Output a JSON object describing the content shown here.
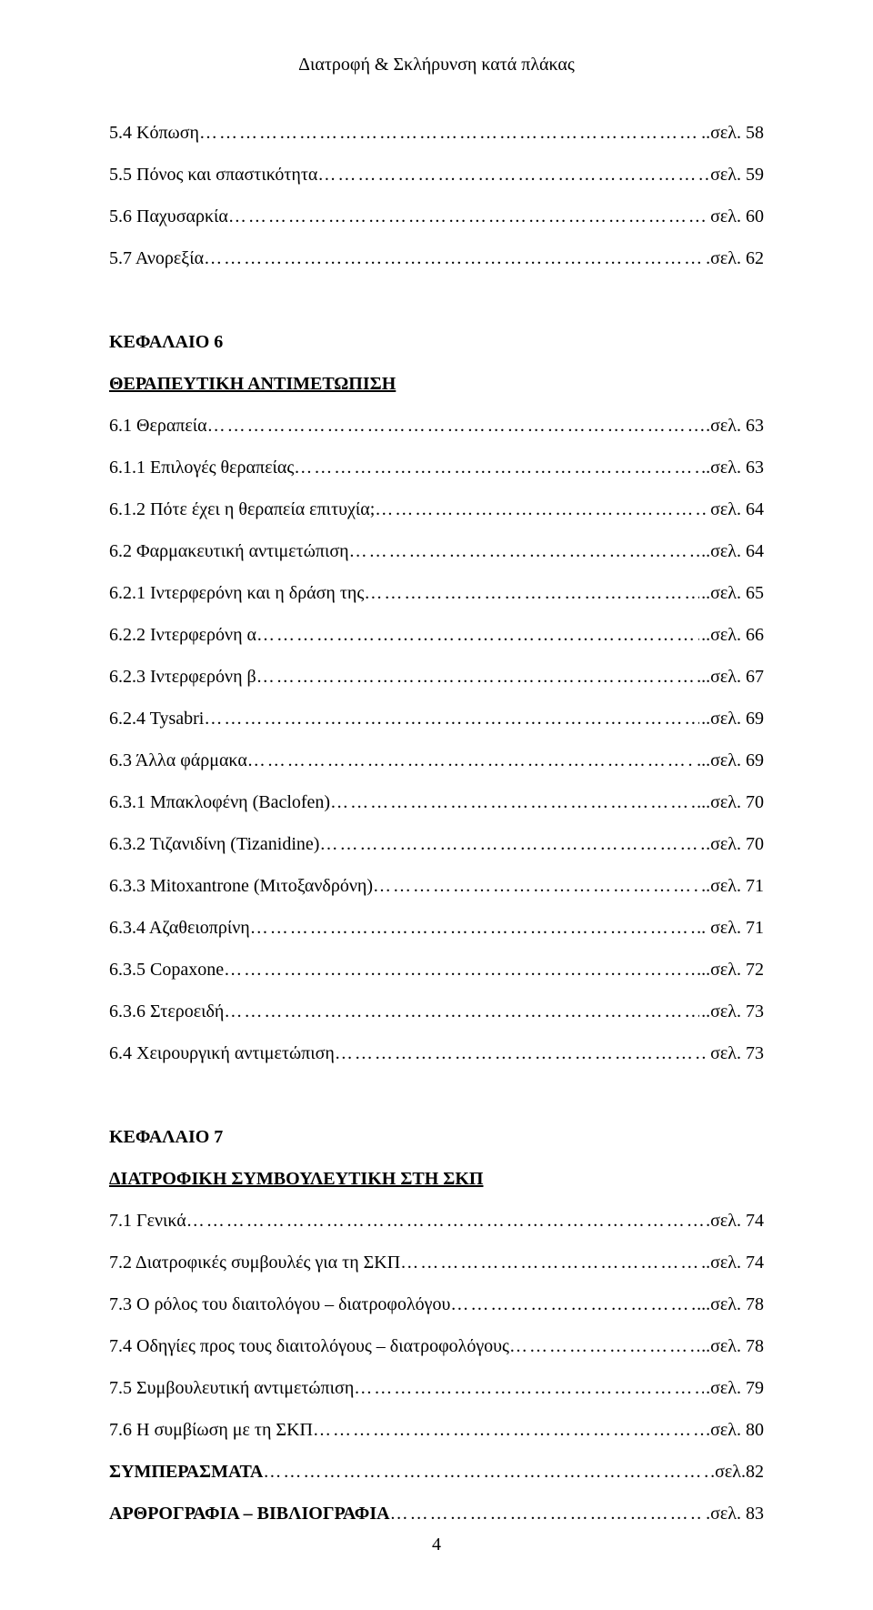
{
  "header": "Διατροφή & Σκλήρυνση κατά πλάκας",
  "page_number": "4",
  "blocks": [
    {
      "entries": [
        {
          "title": "5.4 Κόπωση",
          "page": "..σελ. 58"
        },
        {
          "title": "5.5 Πόνος και σπαστικότητα",
          "page": "σελ. 59"
        },
        {
          "title": "5.6 Παχυσαρκία",
          "page": "σελ. 60"
        },
        {
          "title": "5.7 Ανορεξία",
          "page": ".σελ. 62"
        }
      ]
    },
    {
      "heading_plain": "ΚΕΦΑΛΑΙΟ 6",
      "heading_uline": "ΘΕΡΑΠΕΥΤΙΚΗ ΑΝΤΙΜΕΤΩΠΙΣΗ",
      "entries": [
        {
          "title": "6.1 Θεραπεία",
          "page": ".σελ. 63"
        },
        {
          "title": "6.1.1 Επιλογές θεραπείας",
          "page": "..σελ. 63"
        },
        {
          "title": "6.1.2 Πότε έχει η θεραπεία επιτυχία;",
          "page": "σελ. 64"
        },
        {
          "title": "6.2 Φαρμακευτική αντιμετώπιση",
          "page": "..σελ. 64"
        },
        {
          "title": "6.2.1 Ιντερφερόνη και η δράση της",
          "page": "..σελ. 65"
        },
        {
          "title": "6.2.2 Ιντερφερόνη α",
          "page": "..σελ. 66"
        },
        {
          "title": "6.2.3 Ιντερφερόνη β",
          "page": "...σελ. 67"
        },
        {
          "title": "6.2.4 Tysabri",
          "page": "..σελ. 69"
        },
        {
          "title": "6.3 Άλλα φάρμακα",
          "page": "...σελ. 69"
        },
        {
          "title": "6.3.1 Μπακλοφένη (Baclofen)",
          "page": "...σελ. 70"
        },
        {
          "title": "6.3.2 Τιζανιδίνη (Tizanidine)",
          "page": ".σελ. 70"
        },
        {
          "title": "6.3.3 Mitoxantrone (Μιτοξανδρόνη)",
          "page": "..σελ. 71"
        },
        {
          "title": "6.3.4 Αζαθειοπρίνη",
          "page": ".. σελ. 71"
        },
        {
          "title": "6.3.5 Copaxone",
          "page": "...σελ. 72"
        },
        {
          "title": "6.3.6 Στεροειδή",
          "page": "..σελ. 73"
        },
        {
          "title": "6.4 Χειρουργική αντιμετώπιση",
          "page": "σελ. 73"
        }
      ]
    },
    {
      "heading_plain": "ΚΕΦΑΛΑΙΟ 7",
      "heading_uline": "ΔΙΑΤΡΟΦΙΚΗ ΣΥΜΒΟΥΛΕΥΤΙΚΗ ΣΤΗ ΣΚΠ",
      "entries": [
        {
          "title": "7.1 Γενικά",
          "page": ".σελ. 74"
        },
        {
          "title": "7.2 Διατροφικές συμβουλές για τη ΣΚΠ",
          "page": "..σελ. 74"
        },
        {
          "title": "7.3 Ο ρόλος του διαιτολόγου – διατροφολόγου",
          "page": "...σελ. 78"
        },
        {
          "title": "7.4 Οδηγίες προς τους διαιτολόγους – διατροφολόγους",
          "page": "..σελ. 78"
        },
        {
          "title": "7.5 Συμβουλευτική αντιμετώπιση",
          "page": ".σελ. 79"
        },
        {
          "title": "7.6 Η συμβίωση με τη ΣΚΠ",
          "page": ".σελ. 80"
        }
      ],
      "trailing": [
        {
          "title_bold": "ΣΥΜΠΕΡΑΣΜΑΤΑ",
          "page": ".σελ.82"
        },
        {
          "title_bold": "ΑΡΘΡΟΓΡΑΦΙΑ – ΒΙΒΛΙΟΓΡΑΦΙΑ",
          "page": ".σελ. 83"
        }
      ]
    }
  ]
}
